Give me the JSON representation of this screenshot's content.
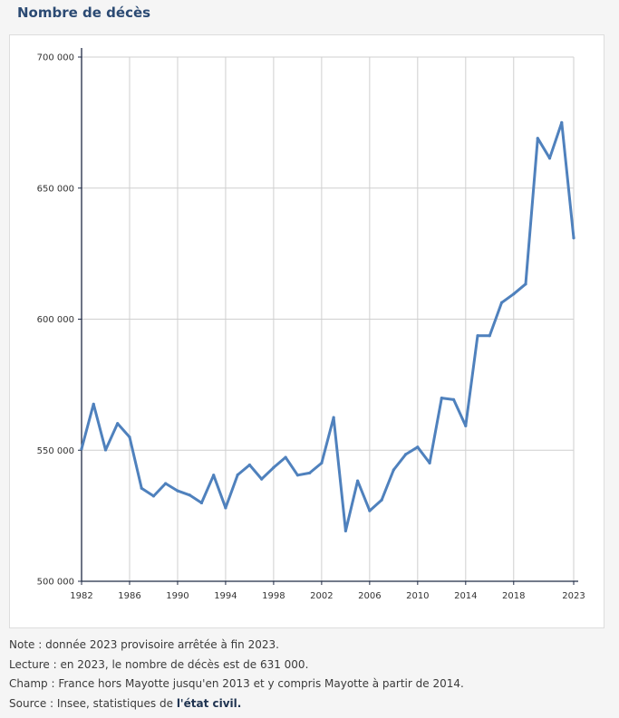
{
  "title": "Nombre de décès",
  "chart_data": {
    "type": "line",
    "title": "Nombre de décès",
    "xlabel": "",
    "ylabel": "",
    "xlim": [
      1982,
      2023
    ],
    "ylim": [
      500000,
      700000
    ],
    "x_ticks": [
      "1982",
      "1986",
      "1990",
      "1994",
      "1998",
      "2002",
      "2006",
      "2010",
      "2014",
      "2018",
      "2023"
    ],
    "y_ticks": [
      "500000",
      "550000",
      "600000",
      "650000",
      "700000"
    ],
    "y_tick_labels": [
      "500 000",
      "550 000",
      "600 000",
      "650 000",
      "700 000"
    ],
    "grid": true,
    "line_color": "#4f81bd",
    "series": [
      {
        "x": [
          1982,
          1983,
          1984,
          1985,
          1986,
          1987,
          1988,
          1989,
          1990,
          1991,
          1992,
          1993,
          1994,
          1995,
          1996,
          1997,
          1998,
          1999,
          2000,
          2001,
          2002,
          2003,
          2004,
          2005,
          2006,
          2007,
          2008,
          2009,
          2010,
          2011,
          2012,
          2013,
          2014,
          2015,
          2016,
          2017,
          2018,
          2019,
          2020,
          2021,
          2022,
          2023
        ],
        "values": [
          550500,
          567600,
          550100,
          560200,
          555000,
          535500,
          532500,
          537300,
          534500,
          532900,
          529900,
          540500,
          528000,
          540600,
          544400,
          539000,
          543400,
          547300,
          540500,
          541300,
          545100,
          562500,
          519200,
          538300,
          526900,
          531000,
          542500,
          548400,
          551200,
          545100,
          569900,
          569300,
          559300,
          593700,
          593700,
          606300,
          609600,
          613400,
          669000,
          661400,
          675000,
          631000
        ]
      }
    ]
  },
  "notes": {
    "note": "Note : donnée 2023 provisoire arrêtée à fin 2023.",
    "lecture": "Lecture : en 2023, le nombre de décès est de 631 000.",
    "champ": "Champ : France hors Mayotte jusqu'en 2013 et y compris Mayotte à partir de 2014.",
    "source_prefix": "Source : Insee, statistiques de ",
    "source_link": "l'état civil."
  }
}
